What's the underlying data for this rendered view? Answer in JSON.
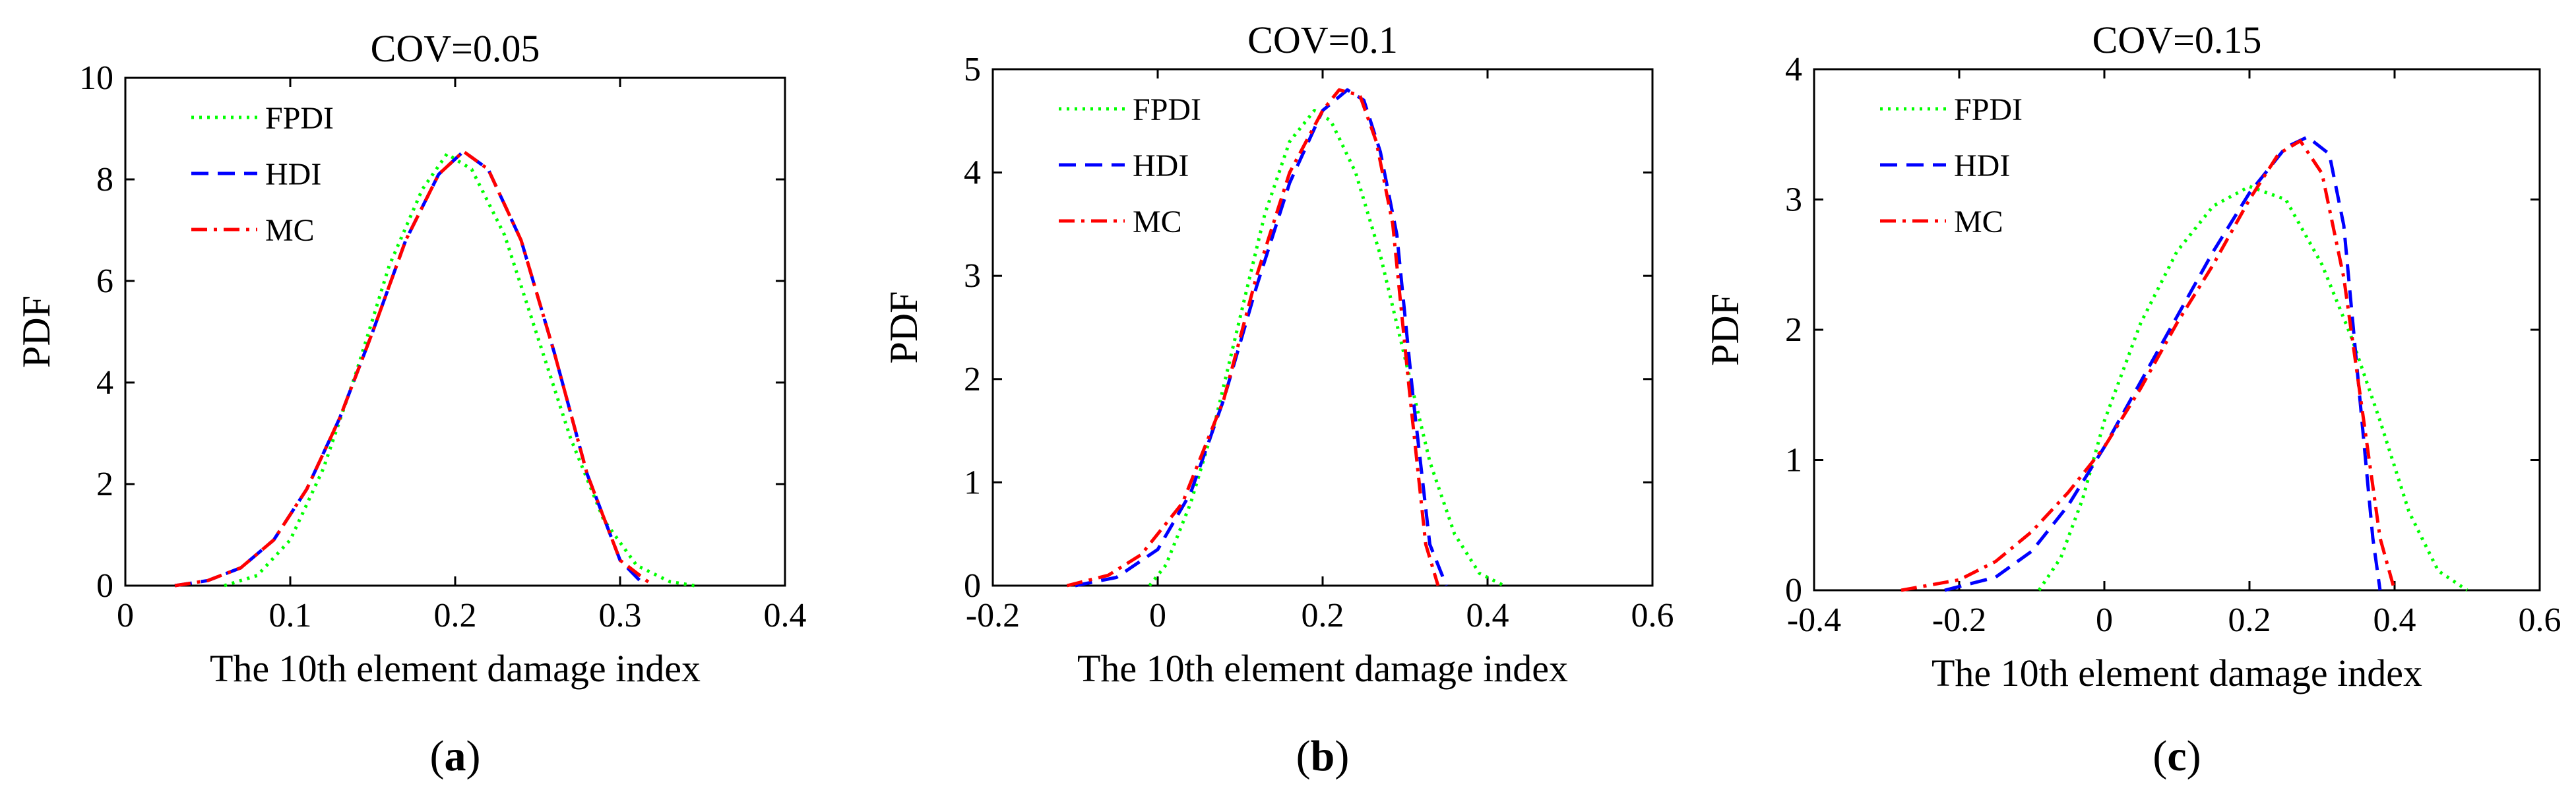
{
  "style": {
    "axis_color": "#000000",
    "background": "#ffffff",
    "series_colors": {
      "FPDI": "#00ff00",
      "HDI": "#0000ff",
      "MC": "#ff0000"
    },
    "series_dash": {
      "FPDI": "dotted",
      "HDI": "dashed",
      "MC": "dash-dot"
    }
  },
  "chart_data": [
    {
      "id": "a",
      "type": "line",
      "title": "COV=0.05",
      "xlabel": "The 10th element damage index",
      "ylabel": "PDF",
      "panel_label": "a",
      "xlim": [
        0,
        0.4
      ],
      "ylim": [
        0,
        10
      ],
      "xticks": [
        0,
        0.1,
        0.2,
        0.3,
        0.4
      ],
      "xtick_labels": [
        "0",
        "0.1",
        "0.2",
        "0.3",
        "0.4"
      ],
      "yticks": [
        0,
        2,
        4,
        6,
        8,
        10
      ],
      "ytick_labels": [
        "0",
        "2",
        "4",
        "6",
        "8",
        "10"
      ],
      "grid": false,
      "legend_position": "top-left",
      "series": [
        {
          "name": "FPDI",
          "x": [
            0.06,
            0.08,
            0.1,
            0.12,
            0.14,
            0.16,
            0.18,
            0.195,
            0.21,
            0.23,
            0.25,
            0.27,
            0.29,
            0.31,
            0.33,
            0.345
          ],
          "y": [
            0,
            0.2,
            0.9,
            2.3,
            4.2,
            6.3,
            7.8,
            8.5,
            8.2,
            6.9,
            4.9,
            2.9,
            1.3,
            0.4,
            0.08,
            0
          ]
        },
        {
          "name": "HDI",
          "x": [
            0.03,
            0.05,
            0.07,
            0.09,
            0.11,
            0.13,
            0.15,
            0.17,
            0.19,
            0.205,
            0.22,
            0.24,
            0.26,
            0.28,
            0.3,
            0.315
          ],
          "y": [
            0,
            0.1,
            0.35,
            0.9,
            1.9,
            3.3,
            5.0,
            6.8,
            8.1,
            8.55,
            8.2,
            6.8,
            4.6,
            2.2,
            0.5,
            0
          ]
        },
        {
          "name": "MC",
          "x": [
            0.03,
            0.05,
            0.07,
            0.09,
            0.11,
            0.13,
            0.15,
            0.17,
            0.19,
            0.205,
            0.22,
            0.24,
            0.26,
            0.28,
            0.3,
            0.32
          ],
          "y": [
            0,
            0.1,
            0.35,
            0.9,
            1.9,
            3.3,
            5.0,
            6.8,
            8.1,
            8.55,
            8.2,
            6.8,
            4.6,
            2.2,
            0.5,
            0
          ]
        }
      ]
    },
    {
      "id": "b",
      "type": "line",
      "title": "COV=0.1",
      "xlabel": "The 10th element damage index",
      "ylabel": "PDF",
      "panel_label": "b",
      "xlim": [
        -0.2,
        0.6
      ],
      "ylim": [
        0,
        5
      ],
      "xticks": [
        -0.2,
        0,
        0.2,
        0.4,
        0.6
      ],
      "xtick_labels": [
        "-0.2",
        "0",
        "0.2",
        "0.4",
        "0.6"
      ],
      "yticks": [
        0,
        1,
        2,
        3,
        4,
        5
      ],
      "ytick_labels": [
        "0",
        "1",
        "2",
        "3",
        "4",
        "5"
      ],
      "grid": false,
      "legend_position": "top-left",
      "series": [
        {
          "name": "FPDI",
          "x": [
            -0.01,
            0.01,
            0.04,
            0.07,
            0.1,
            0.13,
            0.16,
            0.19,
            0.21,
            0.24,
            0.27,
            0.3,
            0.33,
            0.36,
            0.39,
            0.42
          ],
          "y": [
            0,
            0.2,
            0.8,
            1.6,
            2.6,
            3.6,
            4.3,
            4.6,
            4.5,
            4.0,
            3.2,
            2.2,
            1.2,
            0.5,
            0.12,
            0
          ]
        },
        {
          "name": "HDI",
          "x": [
            -0.1,
            -0.05,
            0,
            0.04,
            0.08,
            0.12,
            0.16,
            0.2,
            0.23,
            0.25,
            0.27,
            0.29,
            0.31,
            0.33,
            0.35
          ],
          "y": [
            0,
            0.08,
            0.35,
            0.9,
            1.8,
            2.9,
            3.9,
            4.6,
            4.8,
            4.7,
            4.2,
            3.4,
            1.8,
            0.4,
            0
          ]
        },
        {
          "name": "MC",
          "x": [
            -0.11,
            -0.06,
            -0.02,
            0.03,
            0.08,
            0.12,
            0.16,
            0.2,
            0.22,
            0.245,
            0.265,
            0.285,
            0.305,
            0.325,
            0.34
          ],
          "y": [
            0,
            0.1,
            0.3,
            0.8,
            1.8,
            3.0,
            4.0,
            4.6,
            4.8,
            4.75,
            4.3,
            3.5,
            1.9,
            0.4,
            0
          ]
        }
      ]
    },
    {
      "id": "c",
      "type": "line",
      "title": "COV=0.15",
      "xlabel": "The 10th element damage index",
      "ylabel": "PDF",
      "panel_label": "c",
      "xlim": [
        -0.4,
        0.6
      ],
      "ylim": [
        0,
        4
      ],
      "xticks": [
        -0.4,
        -0.2,
        0,
        0.2,
        0.4,
        0.6
      ],
      "xtick_labels": [
        "-0.4",
        "-0.2",
        "0",
        "0.2",
        "0.4",
        "0.6"
      ],
      "yticks": [
        0,
        1,
        2,
        3,
        4
      ],
      "ytick_labels": [
        "0",
        "1",
        "2",
        "3",
        "4"
      ],
      "grid": false,
      "legend_position": "top-left",
      "series": [
        {
          "name": "FPDI",
          "x": [
            -0.09,
            -0.06,
            -0.03,
            0,
            0.05,
            0.1,
            0.15,
            0.2,
            0.25,
            0.3,
            0.34,
            0.38,
            0.42,
            0.46,
            0.5
          ],
          "y": [
            0,
            0.25,
            0.7,
            1.3,
            2.05,
            2.6,
            2.95,
            3.1,
            3.0,
            2.5,
            1.95,
            1.3,
            0.6,
            0.15,
            0
          ]
        },
        {
          "name": "HDI",
          "x": [
            -0.22,
            -0.15,
            -0.1,
            -0.05,
            0,
            0.05,
            0.1,
            0.15,
            0.2,
            0.25,
            0.28,
            0.31,
            0.33,
            0.35,
            0.37,
            0.38
          ],
          "y": [
            0,
            0.1,
            0.3,
            0.65,
            1.1,
            1.6,
            2.1,
            2.6,
            3.05,
            3.4,
            3.48,
            3.35,
            2.8,
            1.6,
            0.4,
            0
          ]
        },
        {
          "name": "MC",
          "x": [
            -0.28,
            -0.2,
            -0.15,
            -0.1,
            -0.05,
            0,
            0.05,
            0.1,
            0.15,
            0.2,
            0.24,
            0.27,
            0.3,
            0.33,
            0.36,
            0.38,
            0.4
          ],
          "y": [
            0,
            0.08,
            0.22,
            0.45,
            0.75,
            1.1,
            1.55,
            2.05,
            2.5,
            3.0,
            3.35,
            3.45,
            3.2,
            2.4,
            1.2,
            0.4,
            0
          ]
        }
      ]
    }
  ]
}
